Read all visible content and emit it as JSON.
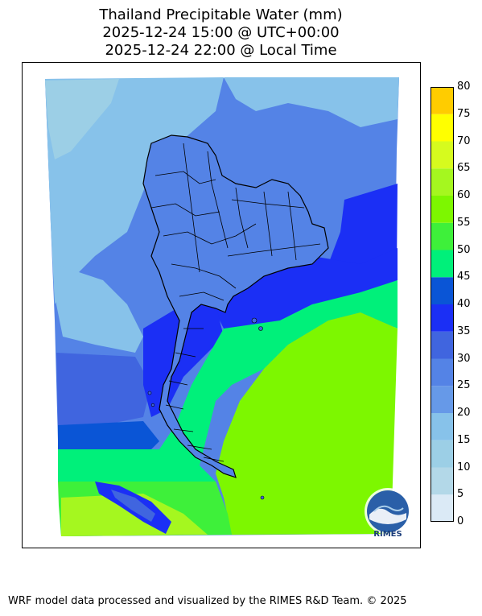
{
  "title": {
    "line1": "Thailand Precipitable Water (mm)",
    "line2": "2025-12-24 15:00 @ UTC+00:00",
    "line3": "2025-12-24 22:00 @ Local Time"
  },
  "colorbar": {
    "unit": "mm",
    "ticks": [
      "0",
      "5",
      "10",
      "15",
      "20",
      "25",
      "30",
      "35",
      "40",
      "45",
      "50",
      "55",
      "60",
      "65",
      "70",
      "75",
      "80"
    ],
    "colors": [
      "#dbeaf6",
      "#b3d8e8",
      "#9ccfe6",
      "#87c2ea",
      "#6699e8",
      "#5483e6",
      "#4065df",
      "#1b2ff5",
      "#0a55d6",
      "#00f07a",
      "#3ef03a",
      "#7df700",
      "#a5f71f",
      "#d6fb1e",
      "#ffff00",
      "#ffcc00"
    ]
  },
  "map": {
    "region": "Thailand",
    "logo_text": "RIMES"
  },
  "footer": {
    "text": "WRF model data processed and visualized by the RIMES R&D Team. © 2025"
  }
}
